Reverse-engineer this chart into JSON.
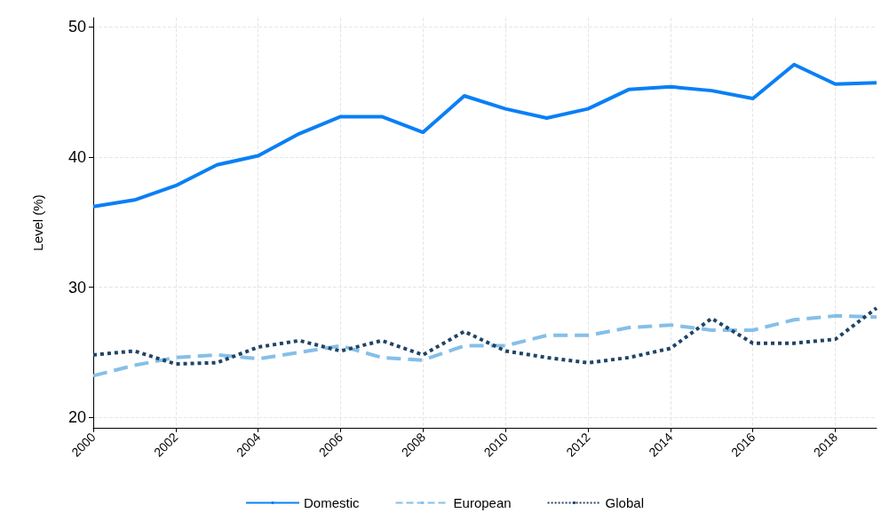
{
  "chart_data": {
    "type": "line",
    "ylabel": "Level (%)",
    "x": [
      2000,
      2001,
      2002,
      2003,
      2004,
      2005,
      2006,
      2007,
      2008,
      2009,
      2010,
      2011,
      2012,
      2013,
      2014,
      2015,
      2016,
      2017,
      2018,
      2019
    ],
    "xlim": [
      2000,
      2019
    ],
    "xticks": [
      2000,
      2002,
      2004,
      2006,
      2008,
      2010,
      2012,
      2014,
      2016,
      2018
    ],
    "ylim": [
      19.2,
      50.7
    ],
    "yticks": [
      20,
      30,
      40,
      50
    ],
    "grid": true,
    "legend": "bottom",
    "marker": "none",
    "series": [
      {
        "name": "Domestic",
        "color": "#0a7ff5",
        "line_style": "solid",
        "values": [
          36.2,
          36.7,
          37.8,
          39.4,
          40.1,
          41.8,
          43.1,
          43.1,
          41.9,
          44.7,
          43.7,
          43.0,
          43.7,
          45.2,
          45.4,
          45.1,
          44.5,
          47.1,
          45.6,
          45.7
        ]
      },
      {
        "name": "European",
        "color": "#85bfe8",
        "line_style": "dashed",
        "values": [
          23.2,
          24.0,
          24.6,
          24.8,
          24.5,
          25.0,
          25.5,
          24.6,
          24.4,
          25.5,
          25.5,
          26.3,
          26.3,
          26.9,
          27.1,
          26.7,
          26.7,
          27.5,
          27.8,
          27.7
        ]
      },
      {
        "name": "Global",
        "color": "#1f4466",
        "line_style": "dotted",
        "values": [
          24.8,
          25.1,
          24.1,
          24.2,
          25.4,
          25.9,
          25.1,
          25.9,
          24.8,
          26.6,
          25.1,
          24.6,
          24.2,
          24.6,
          25.3,
          27.6,
          25.7,
          25.7,
          26.0,
          28.4
        ]
      }
    ]
  }
}
